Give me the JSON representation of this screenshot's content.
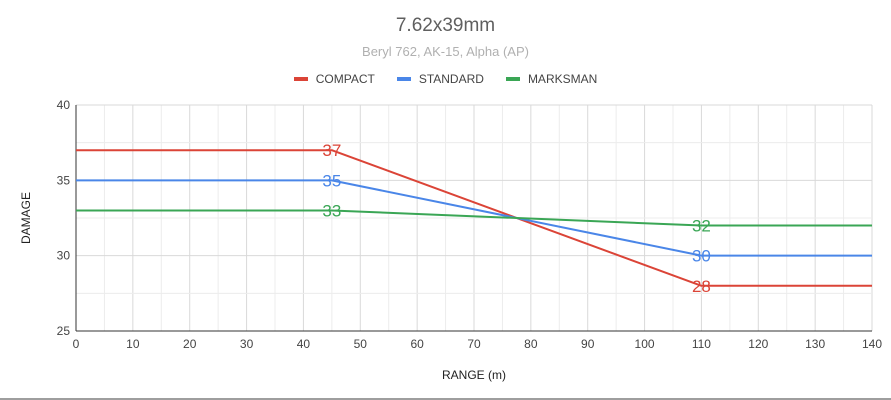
{
  "chart_data": {
    "type": "line",
    "title": "7.62x39mm",
    "subtitle": "Beryl 762, AK-15, Alpha (AP)",
    "xlabel": "RANGE (m)",
    "ylabel": "DAMAGE",
    "xlim": [
      0,
      140
    ],
    "ylim": [
      25,
      40
    ],
    "x_ticks": [
      "0",
      "10",
      "20",
      "30",
      "40",
      "50",
      "60",
      "70",
      "80",
      "90",
      "100",
      "110",
      "120",
      "130",
      "140"
    ],
    "y_ticks": [
      "25",
      "30",
      "35",
      "40"
    ],
    "grid": true,
    "legend_position": "top",
    "series": [
      {
        "name": "COMPACT",
        "color": "#db4437",
        "points": [
          [
            0,
            37
          ],
          [
            45,
            37
          ],
          [
            110,
            28
          ],
          [
            140,
            28
          ]
        ],
        "labels": [
          {
            "x": 45,
            "y": 37,
            "text": "37"
          },
          {
            "x": 110,
            "y": 28,
            "text": "28"
          }
        ]
      },
      {
        "name": "STANDARD",
        "color": "#4a86e8",
        "points": [
          [
            0,
            35
          ],
          [
            45,
            35
          ],
          [
            110,
            30
          ],
          [
            140,
            30
          ]
        ],
        "labels": [
          {
            "x": 45,
            "y": 35,
            "text": "35"
          },
          {
            "x": 110,
            "y": 30,
            "text": "30"
          }
        ]
      },
      {
        "name": "MARKSMAN",
        "color": "#3aa655",
        "points": [
          [
            0,
            33
          ],
          [
            45,
            33
          ],
          [
            110,
            32
          ],
          [
            140,
            32
          ]
        ],
        "labels": [
          {
            "x": 45,
            "y": 33,
            "text": "33"
          },
          {
            "x": 110,
            "y": 32,
            "text": "32"
          }
        ]
      }
    ]
  }
}
